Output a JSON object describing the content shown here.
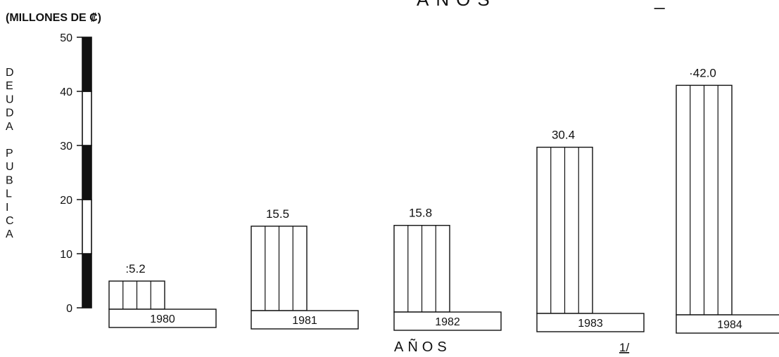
{
  "header": {
    "title_fragment": "AÑOS",
    "title_mark": "_"
  },
  "chart_data": {
    "type": "bar",
    "units_label": "(MILLONES DE ₡)",
    "ylabel": "DEUDA PUBLICA",
    "xlabel": "AÑOS",
    "footnote": "1/",
    "categories": [
      "1980",
      "1981",
      "1982",
      "1983",
      "1984"
    ],
    "values": [
      5.2,
      15.5,
      15.8,
      30.4,
      42.0
    ],
    "data_labels": [
      ":5.2",
      "15.5",
      "15.8",
      "30.4",
      "·42.0"
    ],
    "ylim": [
      0,
      50
    ],
    "yticks": [
      0,
      10,
      20,
      30,
      40,
      50
    ],
    "grid": false,
    "axis_colors": {
      "ink": "#111111",
      "background": "#ffffff"
    }
  }
}
